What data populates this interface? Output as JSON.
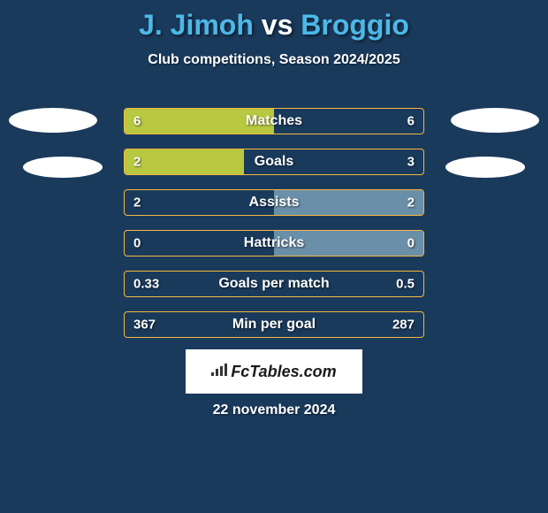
{
  "title": {
    "player1": "J. Jimoh",
    "vs": "vs",
    "player2": "Broggio"
  },
  "subtitle": "Club competitions, Season 2024/2025",
  "colors": {
    "background": "#1a3a5c",
    "title_accent": "#4db8e8",
    "title_vs": "#ffffff",
    "bar_border": "#f5b740",
    "bar_left_fill": "#b8c840",
    "bar_right_fill": "#6a8fa8",
    "ellipse": "#ffffff",
    "text": "#ffffff"
  },
  "stats": [
    {
      "label": "Matches",
      "left_value": "6",
      "right_value": "6",
      "left_fill_pct": 50,
      "right_fill_pct": 0
    },
    {
      "label": "Goals",
      "left_value": "2",
      "right_value": "3",
      "left_fill_pct": 40,
      "right_fill_pct": 0
    },
    {
      "label": "Assists",
      "left_value": "2",
      "right_value": "2",
      "left_fill_pct": 0,
      "right_fill_pct": 50
    },
    {
      "label": "Hattricks",
      "left_value": "0",
      "right_value": "0",
      "left_fill_pct": 0,
      "right_fill_pct": 50
    },
    {
      "label": "Goals per match",
      "left_value": "0.33",
      "right_value": "0.5",
      "left_fill_pct": 0,
      "right_fill_pct": 0
    },
    {
      "label": "Min per goal",
      "left_value": "367",
      "right_value": "287",
      "left_fill_pct": 0,
      "right_fill_pct": 0
    }
  ],
  "logo": {
    "text": "FcTables.com"
  },
  "date": "22 november 2024"
}
